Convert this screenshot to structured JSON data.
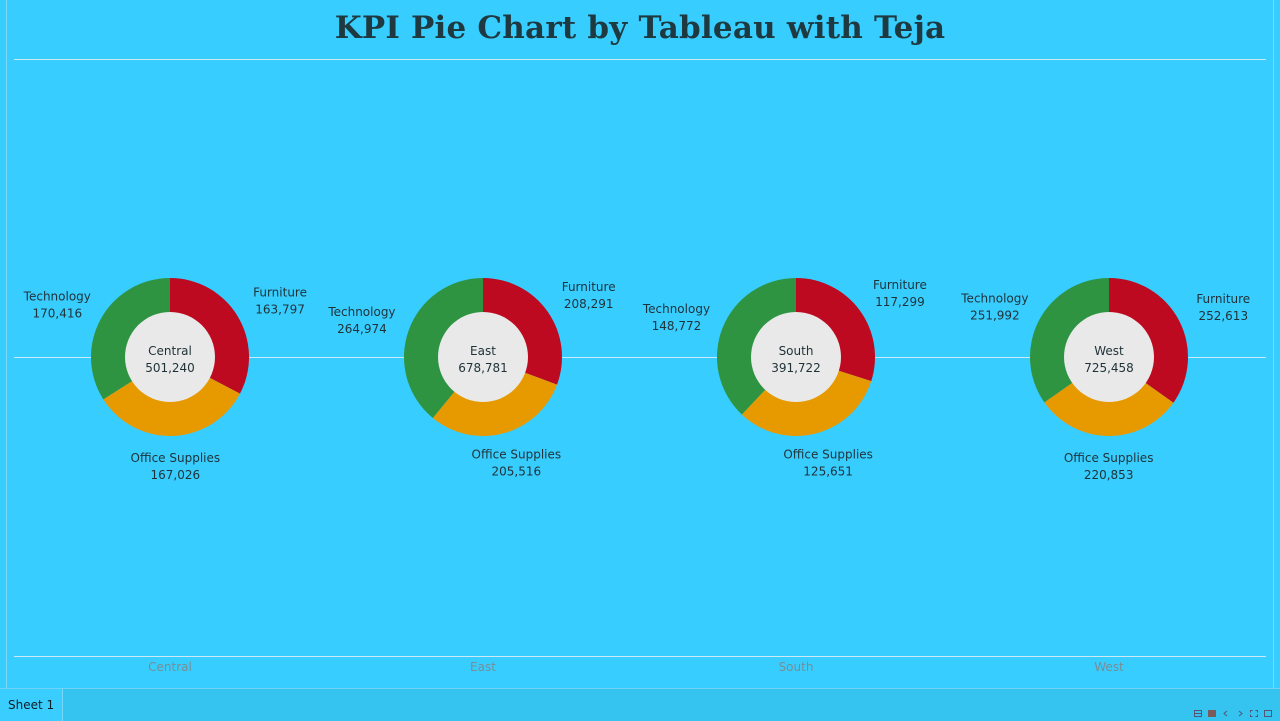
{
  "title": "KPI Pie Chart by Tableau with Teja",
  "sheet_tab": "Sheet 1",
  "colors": {
    "background": "#38cdff",
    "Furniture": "#bd0a20",
    "Office Supplies": "#e79a00",
    "Technology": "#2f9442",
    "center": "#e9e9e9"
  },
  "chart_data": {
    "type": "pie",
    "subtype": "donut",
    "categories": [
      "Furniture",
      "Office Supplies",
      "Technology"
    ],
    "regions": [
      {
        "name": "Central",
        "total": "501,240",
        "slices": [
          {
            "category": "Furniture",
            "value": 163797,
            "label": "163,797"
          },
          {
            "category": "Office Supplies",
            "value": 167026,
            "label": "167,026"
          },
          {
            "category": "Technology",
            "value": 170416,
            "label": "170,416"
          }
        ]
      },
      {
        "name": "East",
        "total": "678,781",
        "slices": [
          {
            "category": "Furniture",
            "value": 208291,
            "label": "208,291"
          },
          {
            "category": "Office Supplies",
            "value": 205516,
            "label": "205,516"
          },
          {
            "category": "Technology",
            "value": 264974,
            "label": "264,974"
          }
        ]
      },
      {
        "name": "South",
        "total": "391,722",
        "slices": [
          {
            "category": "Furniture",
            "value": 117299,
            "label": "117,299"
          },
          {
            "category": "Office Supplies",
            "value": 125651,
            "label": "125,651"
          },
          {
            "category": "Technology",
            "value": 148772,
            "label": "148,772"
          }
        ]
      },
      {
        "name": "West",
        "total": "725,458",
        "slices": [
          {
            "category": "Furniture",
            "value": 252613,
            "label": "252,613"
          },
          {
            "category": "Office Supplies",
            "value": 220853,
            "label": "220,853"
          },
          {
            "category": "Technology",
            "value": 251992,
            "label": "251,992"
          }
        ]
      }
    ],
    "x_axis_labels": [
      "Central",
      "East",
      "South",
      "West"
    ]
  }
}
